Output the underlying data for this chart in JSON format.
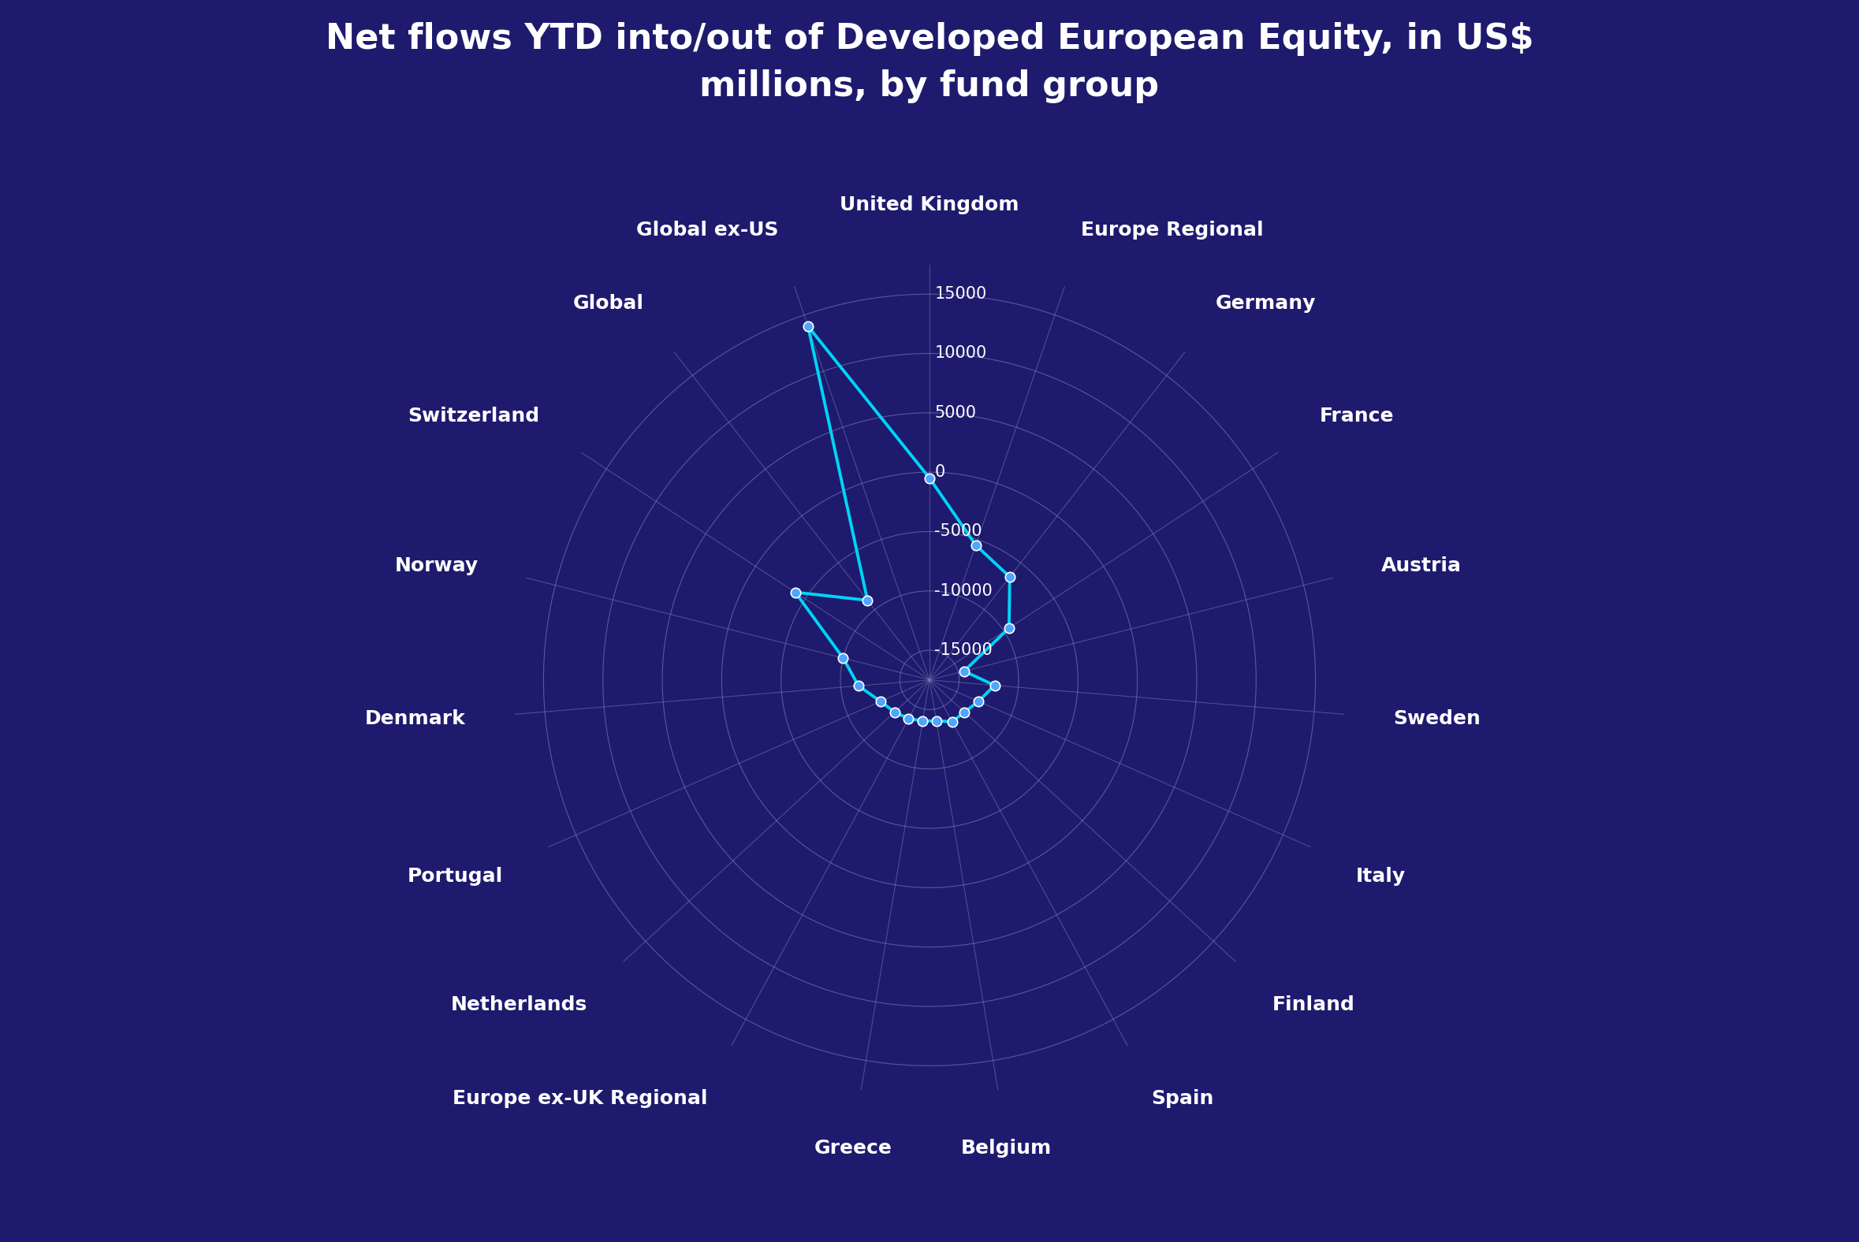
{
  "title": "Net flows YTD into/out of Developed European Equity, in US$\nmillions, by fund group",
  "categories": [
    "United Kingdom",
    "Europe Regional",
    "Germany",
    "France",
    "Austria",
    "Sweden",
    "Italy",
    "Finland",
    "Spain",
    "Belgium",
    "Greece",
    "Europe ex-UK Regional",
    "Netherlands",
    "Portugal",
    "Denmark",
    "Norway",
    "Switzerland",
    "Global",
    "Global ex-US"
  ],
  "values": [
    -500,
    -5500,
    -6500,
    -9500,
    -14500,
    -12000,
    -13000,
    -13500,
    -13500,
    -14000,
    -14000,
    -13800,
    -13500,
    -13000,
    -11500,
    -10000,
    -4000,
    -9000,
    14000
  ],
  "r_range": 17500,
  "r_ticks": [
    -15000,
    -10000,
    -5000,
    0,
    5000,
    10000,
    15000
  ],
  "background_color": "#1e1b6e",
  "line_color": "#00d4f5",
  "marker_color": "#4da6ff",
  "grid_color": "#8888bb",
  "text_color": "#ffffff",
  "title_fontsize": 32,
  "label_fontsize": 18,
  "tick_fontsize": 15
}
